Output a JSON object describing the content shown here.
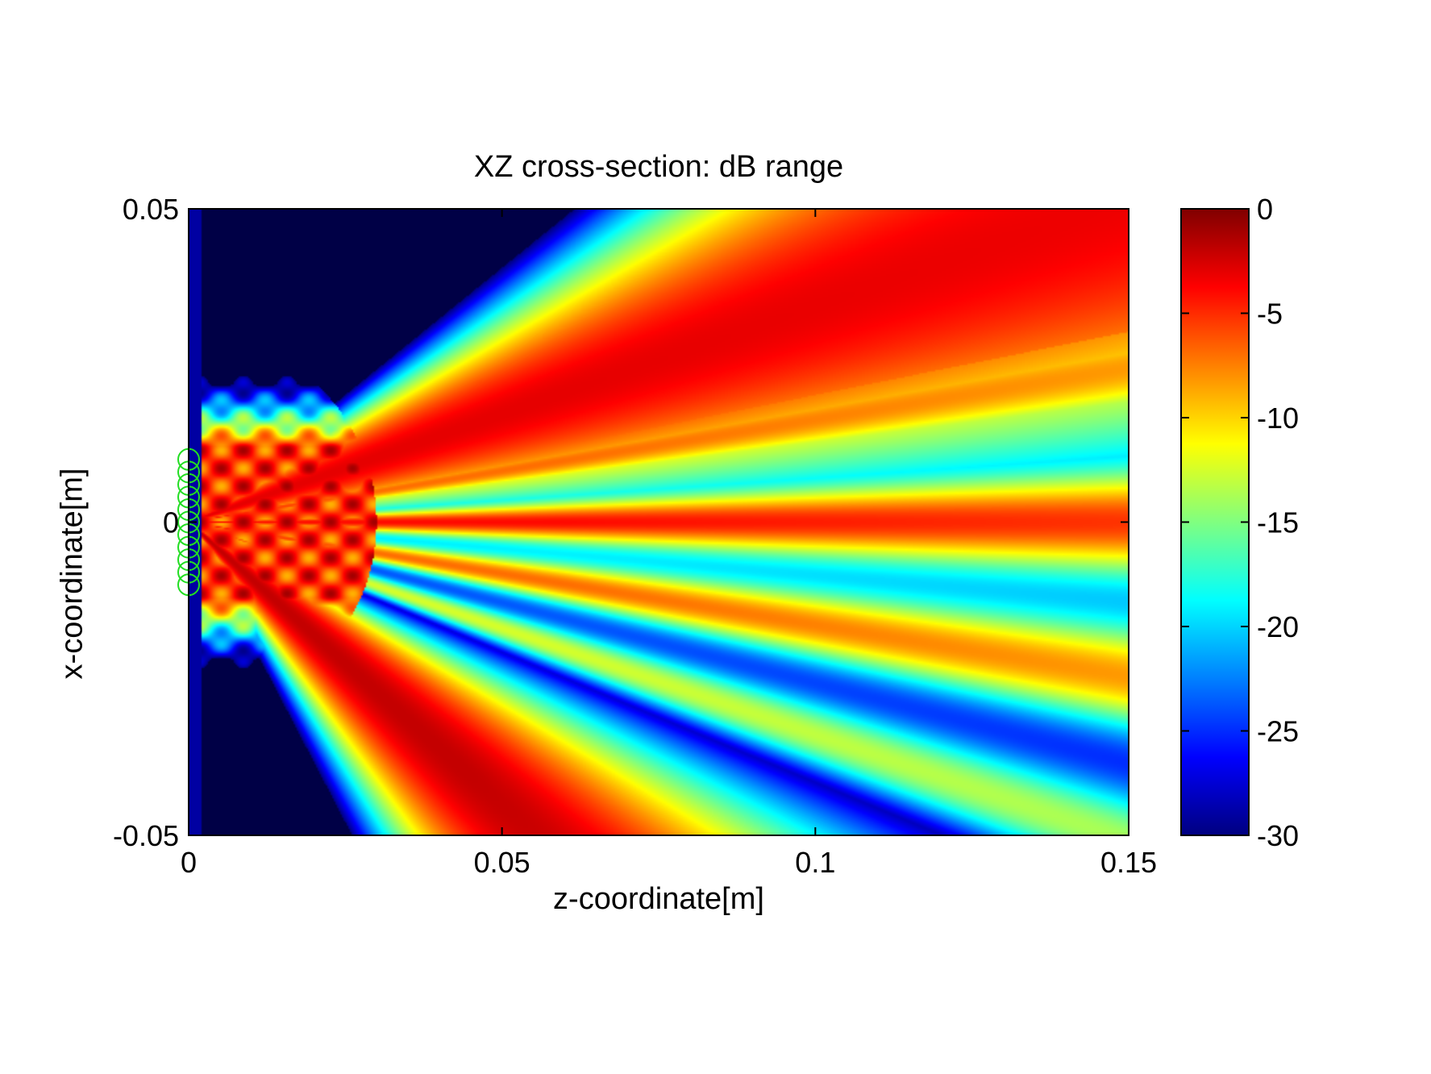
{
  "chart_data": {
    "type": "heatmap",
    "title": "XZ cross-section: dB range",
    "xlabel": "z-coordinate[m]",
    "ylabel": "x-coordinate[m]",
    "xlim": [
      0,
      0.15
    ],
    "ylim": [
      -0.05,
      0.05
    ],
    "xticks": [
      0,
      0.05,
      0.1,
      0.15
    ],
    "xtick_labels": [
      "0",
      "0.05",
      "0.1",
      "0.15"
    ],
    "yticks": [
      -0.05,
      0,
      0.05
    ],
    "ytick_labels": [
      "-0.05",
      "0",
      "0.05"
    ],
    "colorbar": {
      "colormap": "jet",
      "clim": [
        -30,
        0
      ],
      "ticks": [
        0,
        -5,
        -10,
        -15,
        -20,
        -25,
        -30
      ],
      "tick_labels": [
        "0",
        "-5",
        "-10",
        "-15",
        "-20",
        "-25",
        "-30"
      ]
    },
    "main_lobes": [
      {
        "angle_deg": 19,
        "level_db": -3
      },
      {
        "angle_deg": -42,
        "level_db": -2
      }
    ],
    "transducer_elements": {
      "count": 11,
      "z": 0,
      "x_range": [
        -0.01,
        0.01
      ],
      "color": "#22dd22"
    },
    "grid": false
  }
}
